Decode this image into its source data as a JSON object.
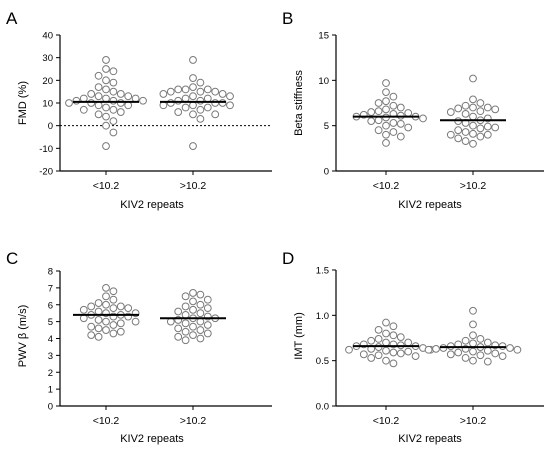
{
  "chart_data": [
    {
      "type": "scatter",
      "panel": "A",
      "ylabel": "FMD (%)",
      "xlabel": "KIV2 repeats",
      "categories": [
        "<10.2",
        ">10.2"
      ],
      "ylim": [
        -20,
        40
      ],
      "yticks": [
        -20,
        -10,
        0,
        10,
        20,
        30,
        40
      ],
      "yticks_text": [
        "-20",
        "-10",
        "0",
        "10",
        "20",
        "30",
        "40"
      ],
      "reference_line": 0,
      "series": [
        {
          "values": [
            29,
            25,
            24,
            22,
            20,
            19,
            17,
            16,
            15,
            14,
            14,
            13,
            13,
            12,
            12,
            12,
            11,
            11,
            11,
            10,
            10,
            10,
            9,
            9,
            8,
            7,
            7,
            6,
            5,
            4,
            2,
            0,
            -3,
            -9
          ],
          "mean": 10.5
        },
        {
          "values": [
            29,
            21,
            19,
            17,
            16,
            16,
            16,
            15,
            15,
            15,
            14,
            14,
            13,
            13,
            12,
            12,
            11,
            11,
            10,
            10,
            10,
            9,
            9,
            9,
            8,
            8,
            7,
            6,
            5,
            5,
            3,
            -9
          ],
          "mean": 10.5
        }
      ]
    },
    {
      "type": "scatter",
      "panel": "B",
      "ylabel": "Beta stiffness",
      "xlabel": "KIV2 repeats",
      "categories": [
        "<10.2",
        ">10.2"
      ],
      "ylim": [
        0,
        15
      ],
      "yticks": [
        0,
        5,
        10,
        15
      ],
      "yticks_text": [
        "0",
        "5",
        "10",
        "15"
      ],
      "series": [
        {
          "values": [
            9.7,
            8.7,
            8.2,
            7.7,
            7.5,
            7.2,
            7.0,
            6.8,
            6.6,
            6.5,
            6.4,
            6.3,
            6.2,
            6.1,
            6.0,
            6.0,
            5.9,
            5.8,
            5.6,
            5.5,
            5.3,
            5.2,
            5.0,
            4.8,
            4.5,
            4.3,
            4.0,
            3.8,
            3.1
          ],
          "mean": 6.0
        },
        {
          "values": [
            10.2,
            7.9,
            7.5,
            7.2,
            7.0,
            7.0,
            6.9,
            6.8,
            6.6,
            6.5,
            6.3,
            6.0,
            5.8,
            5.6,
            5.5,
            5.3,
            5.0,
            4.9,
            4.8,
            4.7,
            4.5,
            4.3,
            4.1,
            4.0,
            4.0,
            3.8,
            3.6,
            3.3,
            3.0
          ],
          "mean": 5.6
        }
      ]
    },
    {
      "type": "scatter",
      "panel": "C",
      "ylabel": "PWV β (m/s)",
      "xlabel": "KIV2 repeats",
      "categories": [
        "<10.2",
        ">10.2"
      ],
      "ylim": [
        0,
        8
      ],
      "yticks": [
        0,
        1,
        2,
        3,
        4,
        5,
        6,
        7,
        8
      ],
      "yticks_text": [
        "0",
        "1",
        "2",
        "3",
        "4",
        "5",
        "6",
        "7",
        "8"
      ],
      "series": [
        {
          "values": [
            7.0,
            6.8,
            6.5,
            6.3,
            6.1,
            6.0,
            5.9,
            5.9,
            5.8,
            5.8,
            5.7,
            5.6,
            5.5,
            5.5,
            5.4,
            5.4,
            5.3,
            5.3,
            5.2,
            5.1,
            5.0,
            5.0,
            4.9,
            4.8,
            4.7,
            4.6,
            4.5,
            4.4,
            4.3,
            4.2,
            4.1
          ],
          "mean": 5.4
        },
        {
          "values": [
            6.7,
            6.6,
            6.5,
            6.3,
            6.2,
            6.0,
            5.9,
            5.8,
            5.7,
            5.6,
            5.5,
            5.4,
            5.3,
            5.2,
            5.2,
            5.1,
            5.0,
            5.0,
            4.9,
            4.8,
            4.7,
            4.6,
            4.5,
            4.4,
            4.3,
            4.2,
            4.1,
            4.0,
            3.9
          ],
          "mean": 5.2
        }
      ]
    },
    {
      "type": "scatter",
      "panel": "D",
      "ylabel": "IMT (mm)",
      "xlabel": "KIV2 repeats",
      "categories": [
        "<10.2",
        ">10.2"
      ],
      "ylim": [
        0,
        1.5
      ],
      "yticks": [
        0,
        0.5,
        1.0,
        1.5
      ],
      "yticks_text": [
        "0.0",
        "0.5",
        "1.0",
        "1.5"
      ],
      "series": [
        {
          "values": [
            0.92,
            0.88,
            0.84,
            0.8,
            0.78,
            0.76,
            0.74,
            0.72,
            0.7,
            0.7,
            0.68,
            0.68,
            0.67,
            0.66,
            0.66,
            0.65,
            0.64,
            0.63,
            0.62,
            0.62,
            0.61,
            0.6,
            0.59,
            0.58,
            0.57,
            0.56,
            0.55,
            0.53,
            0.5,
            0.47
          ],
          "mean": 0.66
        },
        {
          "values": [
            1.05,
            0.9,
            0.78,
            0.74,
            0.72,
            0.7,
            0.69,
            0.68,
            0.67,
            0.66,
            0.66,
            0.65,
            0.64,
            0.64,
            0.63,
            0.63,
            0.62,
            0.62,
            0.61,
            0.6,
            0.59,
            0.58,
            0.57,
            0.56,
            0.55,
            0.53,
            0.5,
            0.49
          ],
          "mean": 0.65
        }
      ]
    }
  ],
  "colors": {
    "axis": "#000000",
    "marker_stroke": "#7a7a7a",
    "marker_fill": "#ffffff",
    "mean_line": "#000000"
  }
}
